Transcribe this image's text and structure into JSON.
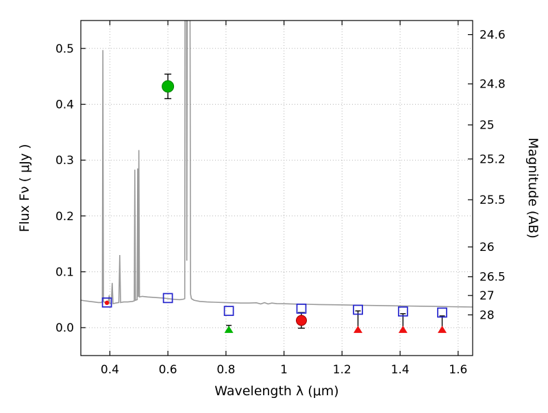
{
  "chart_data": {
    "type": "line",
    "title": "",
    "xlabel": "Wavelength  λ (μm)",
    "ylabel_left": "Flux  Fν  ( μJy )",
    "ylabel_right": "Magnitude (AB)",
    "xlim": [
      0.3,
      1.65
    ],
    "ylim": [
      -0.05,
      0.55
    ],
    "x_ticks": [
      0.4,
      0.6,
      0.8,
      1.0,
      1.2,
      1.4,
      1.6
    ],
    "x_tick_labels": [
      "0.4",
      "0.6",
      "0.8",
      "1",
      "1.2",
      "1.4",
      "1.6"
    ],
    "y_ticks_left": [
      0.0,
      0.1,
      0.2,
      0.3,
      0.4,
      0.5
    ],
    "y_tick_labels_left": [
      "0.0",
      "0.1",
      "0.2",
      "0.3",
      "0.4",
      "0.5"
    ],
    "y_ticks_right": [
      24.6,
      24.8,
      25.0,
      25.2,
      25.5,
      26.0,
      26.5,
      27.0,
      28.0
    ],
    "y_tick_labels_right": [
      "24.6",
      "24.8",
      "25",
      "25.2",
      "25.5",
      "26",
      "26.5",
      "27",
      "28"
    ],
    "grid": true,
    "colors": {
      "spectrum": "#9a9a9a",
      "squares": "#2222cc",
      "green": "#00b400",
      "red": "#ee1111",
      "errorbar": "#000000"
    },
    "series": [
      {
        "name": "galaxy-spectrum",
        "kind": "line",
        "color": "#9a9a9a",
        "points": [
          [
            0.3,
            0.049
          ],
          [
            0.315,
            0.048
          ],
          [
            0.33,
            0.047
          ],
          [
            0.345,
            0.046
          ],
          [
            0.36,
            0.045
          ],
          [
            0.37,
            0.045
          ],
          [
            0.374,
            0.047
          ],
          [
            0.376,
            0.497
          ],
          [
            0.378,
            0.047
          ],
          [
            0.385,
            0.044
          ],
          [
            0.393,
            0.043
          ],
          [
            0.398,
            0.058
          ],
          [
            0.4,
            0.043
          ],
          [
            0.405,
            0.044
          ],
          [
            0.408,
            0.08
          ],
          [
            0.411,
            0.043
          ],
          [
            0.42,
            0.044
          ],
          [
            0.431,
            0.045
          ],
          [
            0.434,
            0.13
          ],
          [
            0.437,
            0.045
          ],
          [
            0.448,
            0.046
          ],
          [
            0.462,
            0.046
          ],
          [
            0.478,
            0.047
          ],
          [
            0.484,
            0.048
          ],
          [
            0.486,
            0.283
          ],
          [
            0.488,
            0.049
          ],
          [
            0.494,
            0.05
          ],
          [
            0.496,
            0.285
          ],
          [
            0.498,
            0.055
          ],
          [
            0.5,
            0.318
          ],
          [
            0.502,
            0.055
          ],
          [
            0.512,
            0.056
          ],
          [
            0.53,
            0.055
          ],
          [
            0.555,
            0.054
          ],
          [
            0.585,
            0.053
          ],
          [
            0.615,
            0.051
          ],
          [
            0.64,
            0.05
          ],
          [
            0.654,
            0.051
          ],
          [
            0.658,
            0.052
          ],
          [
            0.659,
            0.65
          ],
          [
            0.664,
            0.65
          ],
          [
            0.665,
            0.12
          ],
          [
            0.667,
            0.65
          ],
          [
            0.676,
            0.65
          ],
          [
            0.678,
            0.06
          ],
          [
            0.681,
            0.052
          ],
          [
            0.69,
            0.049
          ],
          [
            0.71,
            0.047
          ],
          [
            0.735,
            0.046
          ],
          [
            0.76,
            0.0455
          ],
          [
            0.79,
            0.045
          ],
          [
            0.82,
            0.0445
          ],
          [
            0.85,
            0.044
          ],
          [
            0.88,
            0.044
          ],
          [
            0.905,
            0.0445
          ],
          [
            0.92,
            0.0425
          ],
          [
            0.933,
            0.0448
          ],
          [
            0.945,
            0.0425
          ],
          [
            0.958,
            0.044
          ],
          [
            0.975,
            0.043
          ],
          [
            1.0,
            0.0428
          ],
          [
            1.04,
            0.0422
          ],
          [
            1.08,
            0.0418
          ],
          [
            1.12,
            0.0414
          ],
          [
            1.17,
            0.041
          ],
          [
            1.22,
            0.0405
          ],
          [
            1.27,
            0.04
          ],
          [
            1.32,
            0.0396
          ],
          [
            1.37,
            0.0392
          ],
          [
            1.42,
            0.0388
          ],
          [
            1.47,
            0.0384
          ],
          [
            1.52,
            0.038
          ],
          [
            1.57,
            0.0376
          ],
          [
            1.62,
            0.0372
          ],
          [
            1.65,
            0.037
          ]
        ]
      },
      {
        "name": "model-photometry-squares",
        "kind": "scatter",
        "marker": "open-square",
        "color": "#2222cc",
        "points": [
          [
            0.39,
            0.045
          ],
          [
            0.6,
            0.053
          ],
          [
            0.81,
            0.03
          ],
          [
            1.06,
            0.034
          ],
          [
            1.255,
            0.032
          ],
          [
            1.41,
            0.029
          ],
          [
            1.545,
            0.027
          ]
        ]
      },
      {
        "name": "red-point-uband",
        "kind": "scatter",
        "marker": "small-filled-circle",
        "color": "#ee1111",
        "points": [
          [
            0.39,
            0.0445
          ]
        ]
      },
      {
        "name": "green-detection",
        "kind": "errorbar",
        "marker": "filled-circle",
        "color": "#00b400",
        "points": [
          [
            0.6,
            0.432
          ]
        ],
        "yerr": [
          0.022
        ]
      },
      {
        "name": "green-upper-limit",
        "kind": "limit",
        "marker": "triangle-up",
        "color": "#00b400",
        "points": [
          [
            0.81,
            -0.004
          ]
        ],
        "err_top": [
          0.004
        ]
      },
      {
        "name": "red-detection",
        "kind": "errorbar",
        "marker": "filled-circle",
        "color": "#ee1111",
        "points": [
          [
            1.06,
            0.013
          ]
        ],
        "yerr": [
          0.014
        ]
      },
      {
        "name": "red-upper-limits",
        "kind": "limit",
        "marker": "triangle-up",
        "color": "#ee1111",
        "points": [
          [
            1.255,
            -0.004
          ],
          [
            1.41,
            -0.004
          ],
          [
            1.545,
            -0.004
          ]
        ],
        "err_top": [
          0.03,
          0.025,
          0.021
        ]
      }
    ]
  }
}
